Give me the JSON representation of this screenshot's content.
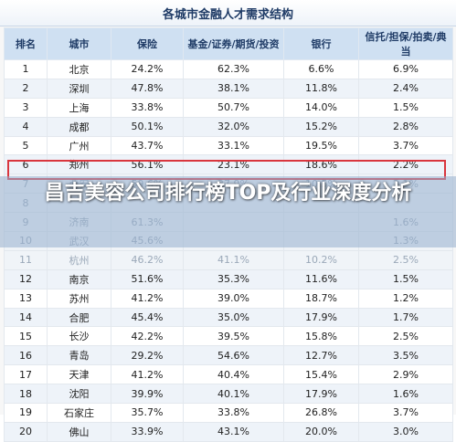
{
  "chart_data": {
    "type": "table",
    "title": "各城市金融人才需求结构",
    "columns": [
      "排名",
      "城市",
      "保险",
      "基金/证券/期货/投资",
      "银行",
      "信托/担保/拍卖/典当"
    ],
    "rows": [
      [
        "1",
        "北京",
        "24.2%",
        "62.3%",
        "6.6%",
        "6.9%"
      ],
      [
        "2",
        "深圳",
        "47.8%",
        "38.1%",
        "11.8%",
        "2.4%"
      ],
      [
        "3",
        "上海",
        "33.8%",
        "50.7%",
        "14.0%",
        "1.5%"
      ],
      [
        "4",
        "成都",
        "50.1%",
        "32.0%",
        "15.2%",
        "2.8%"
      ],
      [
        "5",
        "广州",
        "43.7%",
        "33.1%",
        "19.5%",
        "3.7%"
      ],
      [
        "6",
        "郑州",
        "56.1%",
        "23.1%",
        "18.6%",
        "2.2%"
      ],
      [
        "7",
        "西安",
        "59.6%",
        "27.9%",
        "10.5%",
        "2.1%"
      ],
      [
        "8",
        "",
        "",
        "",
        "",
        ""
      ],
      [
        "9",
        "济南",
        "61.3%",
        "",
        "",
        "1.6%"
      ],
      [
        "10",
        "武汉",
        "45.6%",
        "",
        "",
        "1.3%"
      ],
      [
        "11",
        "杭州",
        "46.2%",
        "41.1%",
        "10.2%",
        "2.5%"
      ],
      [
        "12",
        "南京",
        "51.6%",
        "35.3%",
        "11.6%",
        "1.5%"
      ],
      [
        "13",
        "苏州",
        "41.2%",
        "39.0%",
        "18.7%",
        "1.2%"
      ],
      [
        "14",
        "合肥",
        "45.4%",
        "35.0%",
        "17.9%",
        "1.7%"
      ],
      [
        "15",
        "长沙",
        "42.2%",
        "39.5%",
        "15.8%",
        "2.5%"
      ],
      [
        "16",
        "青岛",
        "29.2%",
        "54.6%",
        "12.7%",
        "3.5%"
      ],
      [
        "17",
        "天津",
        "41.2%",
        "40.4%",
        "15.4%",
        "2.9%"
      ],
      [
        "18",
        "沈阳",
        "39.9%",
        "40.1%",
        "17.9%",
        "1.6%"
      ],
      [
        "19",
        "石家庄",
        "35.7%",
        "33.8%",
        "26.8%",
        "3.7%"
      ],
      [
        "20",
        "佛山",
        "33.9%",
        "43.1%",
        "20.0%",
        "3.0%"
      ]
    ]
  },
  "overlay": {
    "headline": "昌吉美容公司排行榜TOP及行业深度分析"
  },
  "colors": {
    "header_bg": "#cfe0f2",
    "highlight_border": "#d9363e"
  }
}
